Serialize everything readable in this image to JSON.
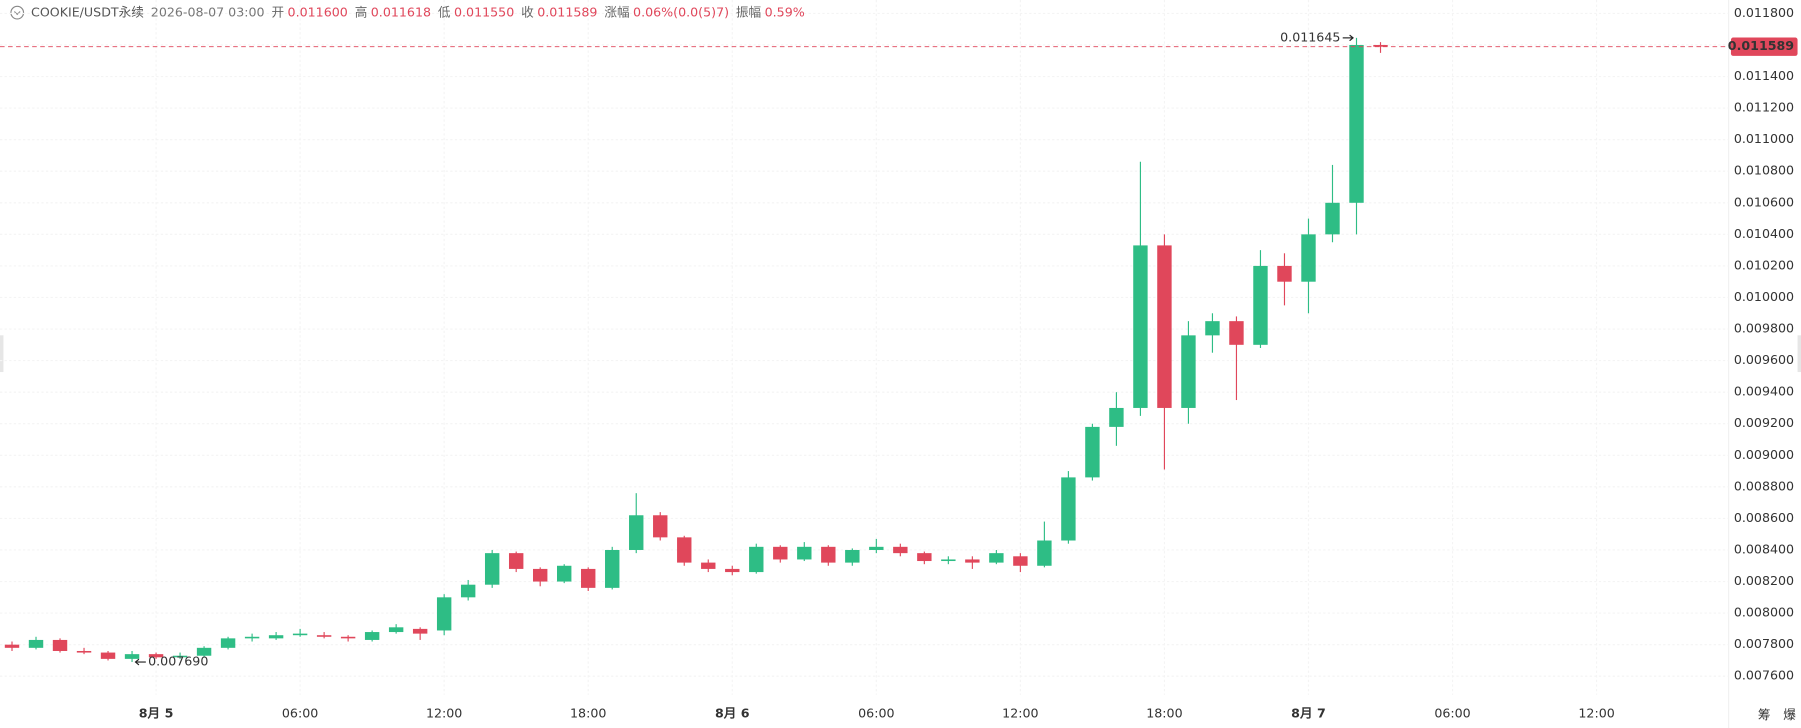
{
  "header": {
    "symbol": "COOKIE/USDT永续",
    "time": "2026-08-07 03:00",
    "fields": [
      {
        "name": "开",
        "value": "0.011600"
      },
      {
        "name": "高",
        "value": "0.011618"
      },
      {
        "name": "低",
        "value": "0.011550"
      },
      {
        "name": "收",
        "value": "0.011589"
      },
      {
        "name": "涨幅",
        "value": "0.06%(0.0(5)7)"
      },
      {
        "name": "振幅",
        "value": "0.59%"
      }
    ]
  },
  "toolbar": [
    "筹",
    "爆"
  ],
  "chart_data": {
    "type": "candlestick",
    "up_color": "#2ebd85",
    "down_color": "#e0475b",
    "grid": true,
    "xlim": [
      -0.5,
      71.5
    ],
    "xticks": [
      {
        "value": 6,
        "label": "8月 5"
      },
      {
        "value": 12,
        "label": "06:00"
      },
      {
        "value": 18,
        "label": "12:00"
      },
      {
        "value": 24,
        "label": "18:00"
      },
      {
        "value": 30,
        "label": "8月 6"
      },
      {
        "value": 36,
        "label": "06:00"
      },
      {
        "value": 42,
        "label": "12:00"
      },
      {
        "value": 48,
        "label": "18:00"
      },
      {
        "value": 54,
        "label": "8月 7"
      },
      {
        "value": 60,
        "label": "06:00"
      },
      {
        "value": 66,
        "label": "12:00"
      }
    ],
    "ylim": [
      0.007483,
      0.011885
    ],
    "yticks": [
      {
        "value": 0.0076,
        "label": "0.007600"
      },
      {
        "value": 0.0078,
        "label": "0.007800"
      },
      {
        "value": 0.008,
        "label": "0.008000"
      },
      {
        "value": 0.0082,
        "label": "0.008200"
      },
      {
        "value": 0.0084,
        "label": "0.008400"
      },
      {
        "value": 0.0086,
        "label": "0.008600"
      },
      {
        "value": 0.0088,
        "label": "0.008800"
      },
      {
        "value": 0.009,
        "label": "0.009000"
      },
      {
        "value": 0.0092,
        "label": "0.009200"
      },
      {
        "value": 0.0094,
        "label": "0.009400"
      },
      {
        "value": 0.0096,
        "label": "0.009600"
      },
      {
        "value": 0.0098,
        "label": "0.009800"
      },
      {
        "value": 0.01,
        "label": "0.010000"
      },
      {
        "value": 0.0102,
        "label": "0.010200"
      },
      {
        "value": 0.0104,
        "label": "0.010400"
      },
      {
        "value": 0.0106,
        "label": "0.010600"
      },
      {
        "value": 0.0108,
        "label": "0.010800"
      },
      {
        "value": 0.011,
        "label": "0.011000"
      },
      {
        "value": 0.0112,
        "label": "0.011200"
      },
      {
        "value": 0.0114,
        "label": "0.011400"
      },
      {
        "value": 0.0116,
        "label": "0.011600"
      },
      {
        "value": 0.0118,
        "label": "0.011800"
      }
    ],
    "open": [
      0.0078,
      0.00778,
      0.00783,
      0.00776,
      0.00775,
      0.00771,
      0.00774,
      0.00772,
      0.00773,
      0.00778,
      0.00784,
      0.00784,
      0.00786,
      0.00786,
      0.00785,
      0.00783,
      0.00788,
      0.0079,
      0.00789,
      0.0081,
      0.00818,
      0.00838,
      0.00828,
      0.0082,
      0.00828,
      0.00816,
      0.0084,
      0.00862,
      0.00848,
      0.00832,
      0.00828,
      0.00826,
      0.00842,
      0.00834,
      0.00842,
      0.00832,
      0.0084,
      0.00842,
      0.00838,
      0.00833,
      0.00834,
      0.00832,
      0.00836,
      0.0083,
      0.00846,
      0.00886,
      0.00918,
      0.0093,
      0.01033,
      0.0093,
      0.00976,
      0.00985,
      0.0097,
      0.0102,
      0.0101,
      0.0104,
      0.0106,
      0.0116
    ],
    "high": [
      0.00782,
      0.00785,
      0.00784,
      0.00778,
      0.00776,
      0.00776,
      0.00775,
      0.00775,
      0.00779,
      0.00785,
      0.00787,
      0.00788,
      0.0079,
      0.00788,
      0.00786,
      0.00789,
      0.00793,
      0.00791,
      0.00812,
      0.00821,
      0.0084,
      0.00839,
      0.00829,
      0.00831,
      0.00829,
      0.00842,
      0.00876,
      0.00864,
      0.00849,
      0.00834,
      0.0083,
      0.00844,
      0.00843,
      0.00845,
      0.00843,
      0.00841,
      0.00847,
      0.00844,
      0.00839,
      0.00836,
      0.00836,
      0.0084,
      0.00838,
      0.00858,
      0.0089,
      0.0092,
      0.0094,
      0.01086,
      0.0104,
      0.00985,
      0.0099,
      0.00988,
      0.0103,
      0.01028,
      0.0105,
      0.01084,
      0.011645,
      0.011618
    ],
    "low": [
      0.00776,
      0.00777,
      0.00775,
      0.00774,
      0.0077,
      0.00769,
      0.00771,
      0.00771,
      0.00772,
      0.00777,
      0.00782,
      0.00783,
      0.00785,
      0.00784,
      0.00782,
      0.00782,
      0.00787,
      0.00783,
      0.00786,
      0.00808,
      0.00816,
      0.00826,
      0.00817,
      0.00819,
      0.00814,
      0.00815,
      0.00838,
      0.00846,
      0.0083,
      0.00826,
      0.00824,
      0.00825,
      0.00832,
      0.00833,
      0.0083,
      0.0083,
      0.00838,
      0.00836,
      0.00831,
      0.00831,
      0.00828,
      0.00831,
      0.00826,
      0.00829,
      0.00844,
      0.00884,
      0.00906,
      0.00925,
      0.00891,
      0.0092,
      0.00965,
      0.00935,
      0.00968,
      0.00995,
      0.0099,
      0.01035,
      0.0104,
      0.01155
    ],
    "close": [
      0.00778,
      0.00783,
      0.00776,
      0.00775,
      0.00771,
      0.00774,
      0.00772,
      0.00773,
      0.00778,
      0.00784,
      0.00785,
      0.00786,
      0.00787,
      0.00785,
      0.00784,
      0.00788,
      0.00791,
      0.00787,
      0.0081,
      0.00818,
      0.00838,
      0.00828,
      0.0082,
      0.0083,
      0.00816,
      0.0084,
      0.00862,
      0.00848,
      0.00832,
      0.00828,
      0.00826,
      0.00842,
      0.00834,
      0.00842,
      0.00832,
      0.0084,
      0.00842,
      0.00838,
      0.00833,
      0.00834,
      0.00832,
      0.00838,
      0.0083,
      0.00846,
      0.00886,
      0.00918,
      0.0093,
      0.01033,
      0.0093,
      0.00976,
      0.00985,
      0.0097,
      0.0102,
      0.0101,
      0.0104,
      0.0106,
      0.0116,
      0.011589
    ],
    "high_marker": {
      "value": 0.011645,
      "label": "0.011645"
    },
    "low_marker": {
      "value": 0.00769,
      "label": "0.007690"
    },
    "last_price": {
      "value": 0.011589,
      "label": "0.011589"
    }
  }
}
